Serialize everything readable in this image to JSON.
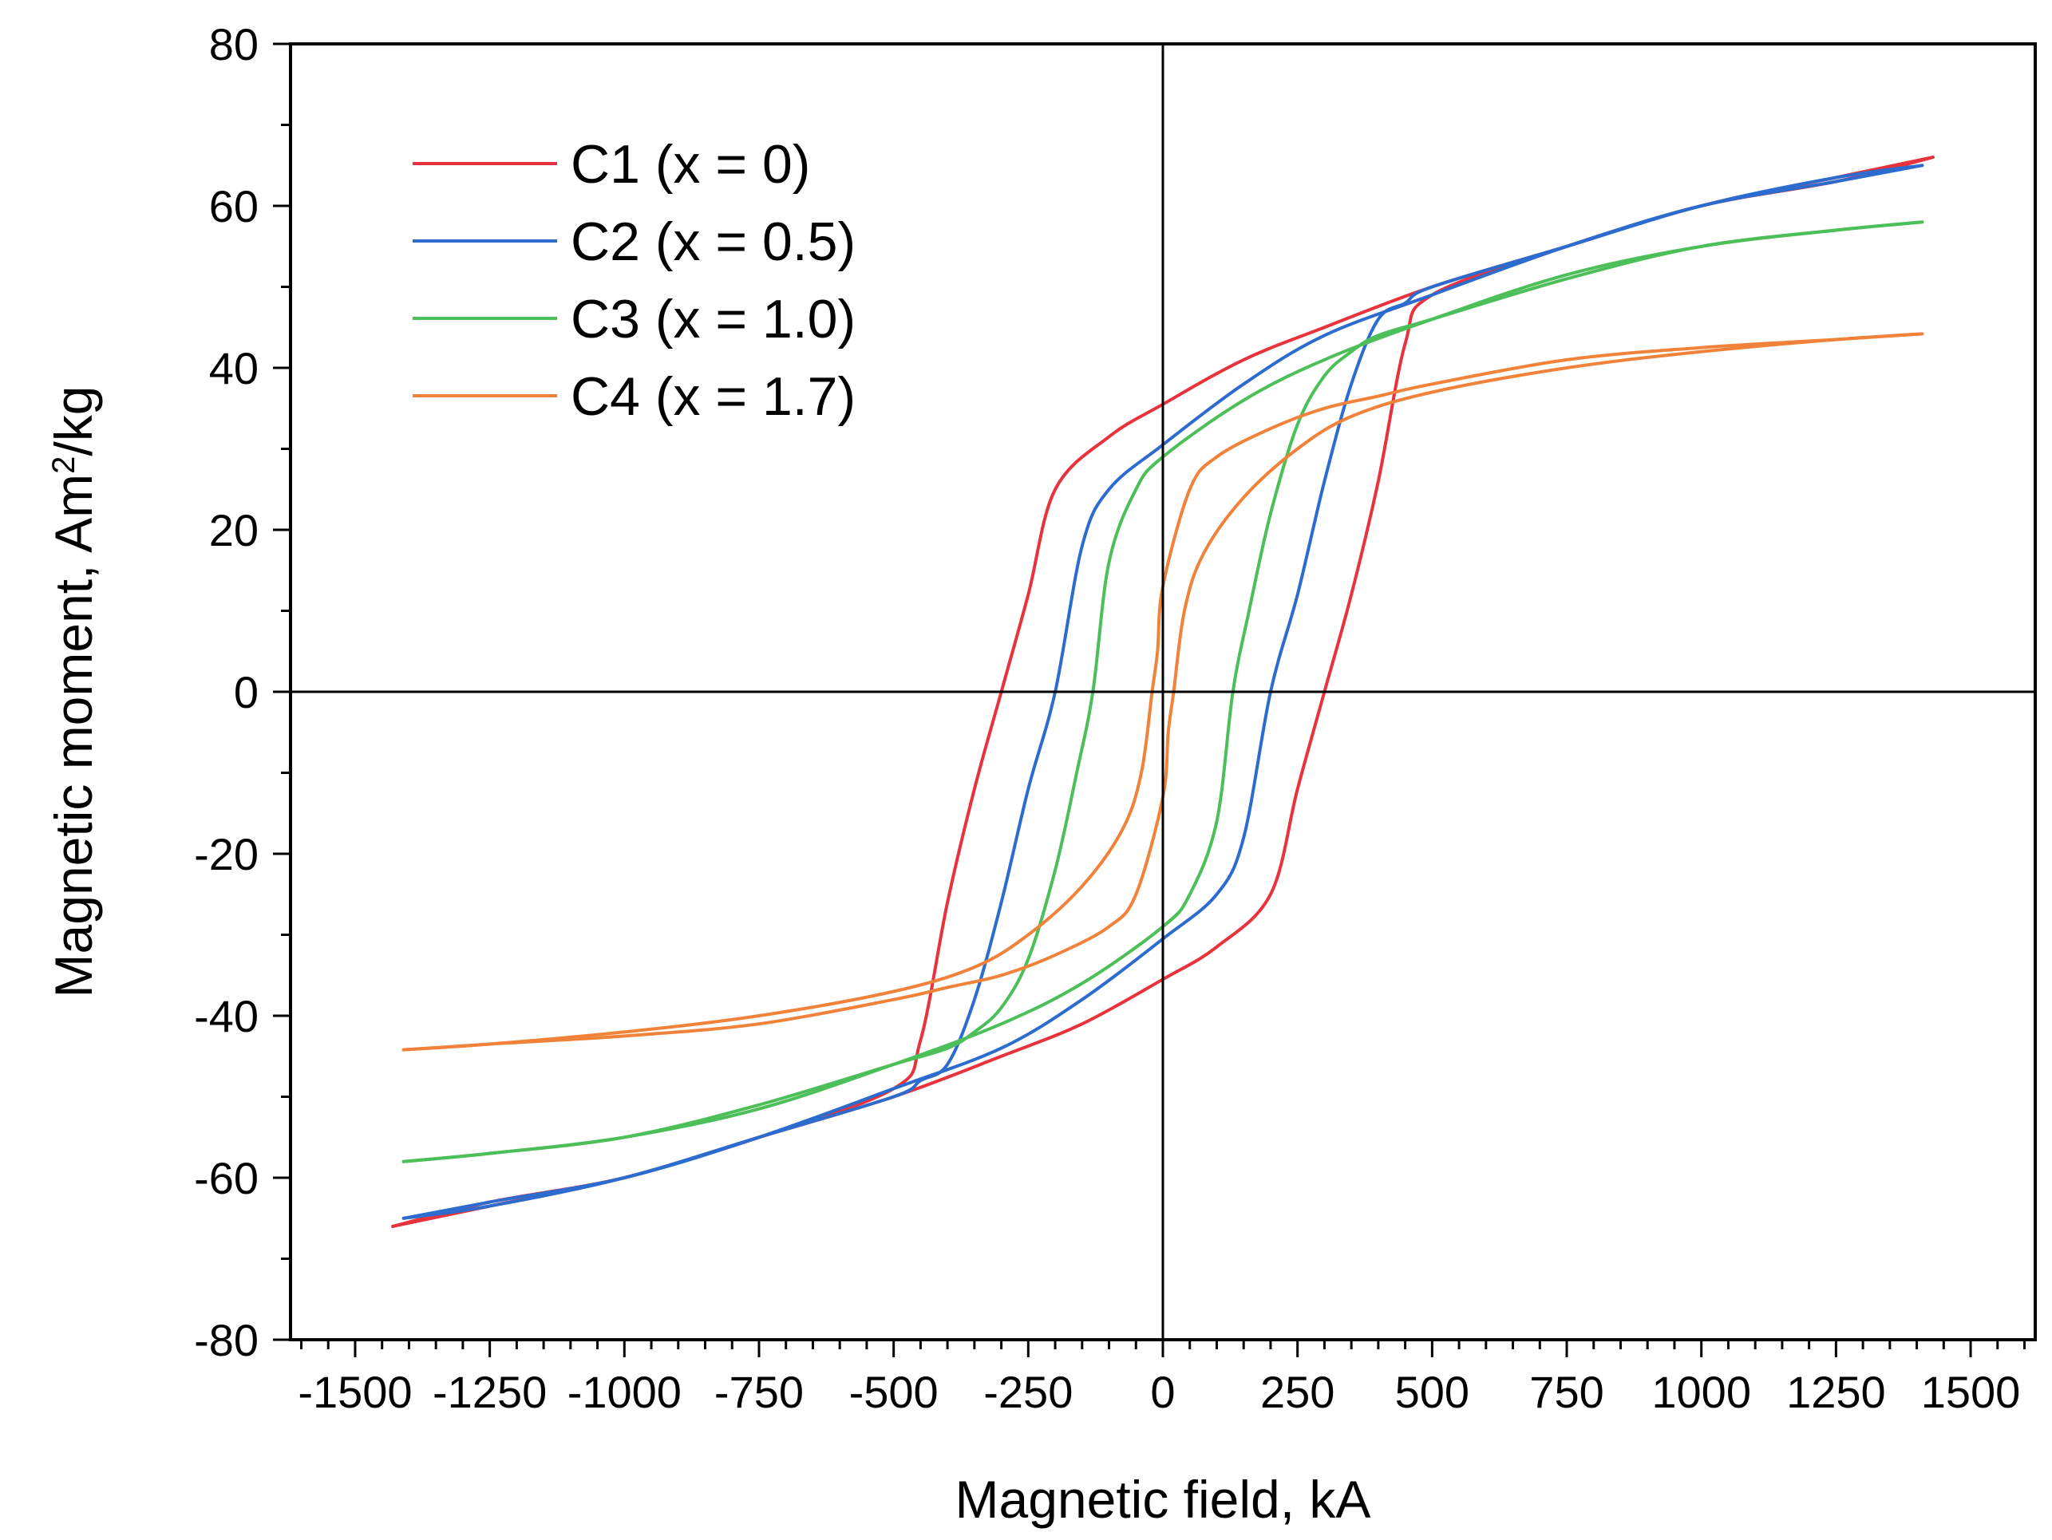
{
  "chart_data": {
    "type": "line",
    "title": "",
    "xlabel": "Magnetic field, kA",
    "ylabel_main": "Magnetic moment, Am",
    "ylabel_sup": "2",
    "ylabel_tail": "/kg",
    "xlim": [
      -1620,
      1620
    ],
    "ylim": [
      -80,
      80
    ],
    "x_ticks": [
      -1500,
      -1250,
      -1000,
      -750,
      -500,
      -250,
      0,
      250,
      500,
      750,
      1000,
      1250,
      1500
    ],
    "x_tick_labels": [
      "-1500",
      "-1250",
      "-1000",
      "-750",
      "-500",
      "-250",
      "0",
      "250",
      "500",
      "750",
      "1000",
      "1250",
      "1500"
    ],
    "y_ticks": [
      -80,
      -60,
      -40,
      -20,
      0,
      20,
      40,
      60,
      80
    ],
    "y_tick_labels": [
      "-80",
      "-60",
      "-40",
      "-20",
      "0",
      "20",
      "40",
      "60",
      "80"
    ],
    "grid": false,
    "zero_lines": true,
    "legend_position": "top-left",
    "series": [
      {
        "name": "C1 (x = 0)",
        "color": "#e8323c",
        "descending": {
          "x": [
            1430,
            1250,
            1000,
            750,
            500,
            300,
            150,
            0,
            -100,
            -200,
            -250,
            -300,
            -350,
            -400,
            -450,
            -500,
            -750,
            -1000,
            -1250,
            -1430
          ],
          "y": [
            66,
            63,
            60,
            55,
            50,
            45,
            41,
            35.5,
            31.5,
            25,
            12,
            0,
            -12,
            -26,
            -43,
            -49,
            -55,
            -60,
            -63.5,
            -66
          ]
        },
        "ascending": {
          "x": [
            -1430,
            -1250,
            -1000,
            -750,
            -500,
            -300,
            -150,
            0,
            100,
            200,
            250,
            300,
            350,
            400,
            450,
            500,
            750,
            1000,
            1250,
            1430
          ],
          "y": [
            -66,
            -63,
            -60,
            -55,
            -50,
            -45,
            -41,
            -35.5,
            -31.5,
            -25,
            -12,
            0,
            12,
            26,
            43,
            49,
            55,
            60,
            63.5,
            66
          ]
        }
      },
      {
        "name": "C2 (x = 0.5)",
        "color": "#2d6ccf",
        "descending": {
          "x": [
            1410,
            1250,
            1000,
            750,
            500,
            300,
            150,
            0,
            -100,
            -150,
            -200,
            -250,
            -300,
            -350,
            -400,
            -450,
            -500,
            -750,
            -1000,
            -1250,
            -1410
          ],
          "y": [
            65,
            63,
            60,
            55,
            49,
            44,
            38,
            30.5,
            25,
            18,
            0,
            -12,
            -26,
            -38,
            -46,
            -48,
            -50,
            -55,
            -60,
            -63.5,
            -65
          ]
        },
        "ascending": {
          "x": [
            -1410,
            -1250,
            -1000,
            -750,
            -500,
            -300,
            -150,
            0,
            100,
            150,
            200,
            250,
            300,
            350,
            400,
            450,
            500,
            750,
            1000,
            1250,
            1410
          ],
          "y": [
            -65,
            -63,
            -60,
            -55,
            -49,
            -44,
            -38,
            -30.5,
            -25,
            -18,
            0,
            12,
            26,
            38,
            46,
            48,
            50,
            55,
            60,
            63.5,
            65
          ]
        }
      },
      {
        "name": "C3 (x = 1.0)",
        "color": "#4cbf58",
        "descending": {
          "x": [
            1410,
            1250,
            1000,
            750,
            500,
            300,
            150,
            0,
            -50,
            -100,
            -130,
            -160,
            -200,
            -250,
            -300,
            -350,
            -400,
            -500,
            -750,
            -1000,
            -1250,
            -1410
          ],
          "y": [
            58,
            57,
            55,
            51.5,
            46,
            41,
            36,
            29,
            25,
            16,
            0,
            -10,
            -22,
            -33,
            -39,
            -42,
            -44,
            -46,
            -51,
            -55,
            -57,
            -58
          ]
        },
        "ascending": {
          "x": [
            -1410,
            -1250,
            -1000,
            -750,
            -500,
            -300,
            -150,
            0,
            50,
            100,
            130,
            160,
            200,
            250,
            300,
            350,
            400,
            500,
            750,
            1000,
            1250,
            1410
          ],
          "y": [
            -58,
            -57,
            -55,
            -51.5,
            -46,
            -41,
            -36,
            -29,
            -25,
            -16,
            0,
            10,
            22,
            33,
            39,
            42,
            44,
            46,
            51,
            55,
            57,
            58
          ]
        }
      },
      {
        "name": "C4 (x = 1.7)",
        "color": "#f0823a",
        "descending": {
          "x": [
            1410,
            1250,
            1000,
            750,
            500,
            400,
            300,
            200,
            100,
            50,
            0,
            -10,
            -20,
            -40,
            -75,
            -150,
            -250,
            -350,
            -500,
            -750,
            -1000,
            -1250,
            -1410
          ],
          "y": [
            44.2,
            43.5,
            42.5,
            41,
            38,
            36.5,
            35,
            32.5,
            29,
            25,
            13,
            5,
            0,
            -10,
            -17,
            -24,
            -30,
            -34,
            -37,
            -40,
            -42,
            -43.5,
            -44.2
          ]
        },
        "ascending": {
          "x": [
            -1410,
            -1250,
            -1000,
            -750,
            -500,
            -400,
            -300,
            -200,
            -100,
            -50,
            0,
            10,
            20,
            40,
            75,
            150,
            250,
            350,
            500,
            750,
            1000,
            1250,
            1410
          ],
          "y": [
            -44.2,
            -43.5,
            -42.5,
            -41,
            -38,
            -36.5,
            -35,
            -32.5,
            -29,
            -25,
            -13,
            -5,
            0,
            10,
            17,
            24,
            30,
            34,
            37,
            40,
            42,
            43.5,
            44.2
          ]
        }
      }
    ]
  }
}
